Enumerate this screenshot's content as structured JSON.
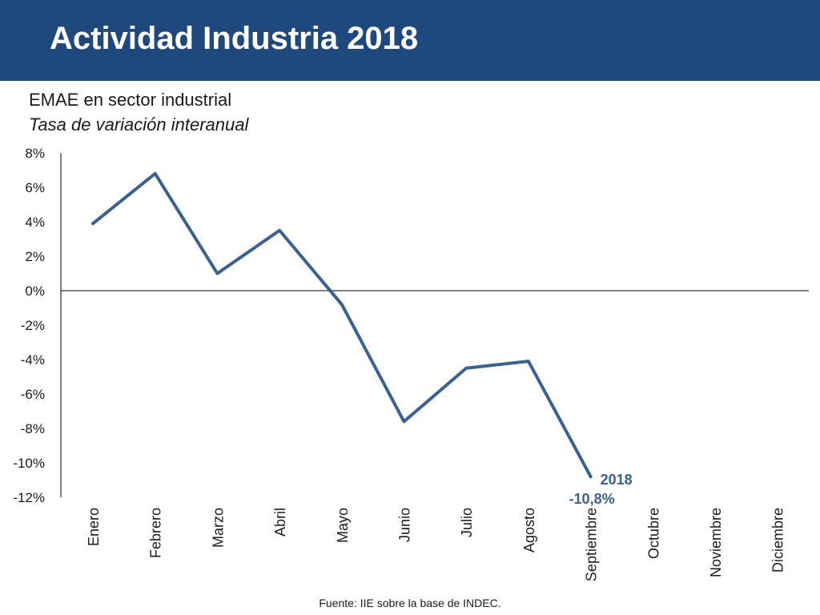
{
  "header": {
    "title": "Actividad Industria 2018"
  },
  "subtitle": "EMAE en sector industrial",
  "subtitle_italic": "Tasa de variación interanual",
  "source": "Fuente: IIE sobre la base de INDEC.",
  "colors": {
    "header_bg": "#1f497d",
    "line": "#3a6190",
    "axis": "#000000"
  },
  "chart_data": {
    "type": "line",
    "categories": [
      "Enero",
      "Febrero",
      "Marzo",
      "Abril",
      "Mayo",
      "Junio",
      "Julio",
      "Agosto",
      "Septiembre",
      "Octubre",
      "Noviembre",
      "Diciembre"
    ],
    "series": [
      {
        "name": "2018",
        "values": [
          3.9,
          6.8,
          1.0,
          3.5,
          -0.8,
          -7.6,
          -4.5,
          -4.1,
          -10.8,
          null,
          null,
          null
        ]
      }
    ],
    "ylim": [
      -12,
      8
    ],
    "yticks": [
      8,
      6,
      4,
      2,
      0,
      -2,
      -4,
      -6,
      -8,
      -10,
      -12
    ],
    "ytick_labels": [
      "8%",
      "6%",
      "4%",
      "2%",
      "0%",
      "-2%",
      "-4%",
      "-6%",
      "-8%",
      "-10%",
      "-12%"
    ],
    "annotations": [
      {
        "text": "-10,8%",
        "category": "Septiembre"
      }
    ],
    "grid": false,
    "legend": "inline-label"
  }
}
